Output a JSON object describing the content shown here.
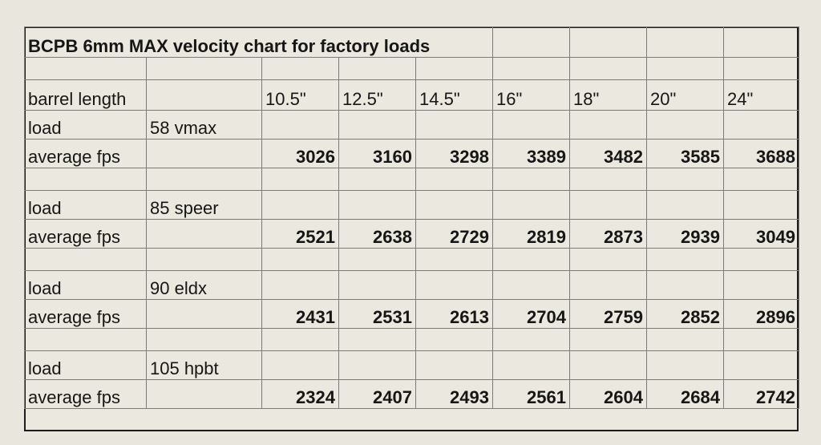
{
  "title": "BCPB 6mm MAX velocity chart for factory loads",
  "header": {
    "label": "barrel length",
    "columns": [
      "10.5\"",
      "12.5\"",
      "14.5\"",
      "16\"",
      "18\"",
      "20\"",
      "24\""
    ]
  },
  "loads": [
    {
      "load_label": "load",
      "load_name": "58 vmax",
      "fps_label": "average fps",
      "fps": [
        "3026",
        "3160",
        "3298",
        "3389",
        "3482",
        "3585",
        "3688"
      ]
    },
    {
      "load_label": "load",
      "load_name": "85 speer",
      "fps_label": "average fps",
      "fps": [
        "2521",
        "2638",
        "2729",
        "2819",
        "2873",
        "2939",
        "3049"
      ]
    },
    {
      "load_label": "load",
      "load_name": "90 eldx",
      "fps_label": "average fps",
      "fps": [
        "2431",
        "2531",
        "2613",
        "2704",
        "2759",
        "2852",
        "2896"
      ]
    },
    {
      "load_label": "load",
      "load_name": "105 hpbt",
      "fps_label": "average fps",
      "fps": [
        "2324",
        "2407",
        "2493",
        "2561",
        "2604",
        "2684",
        "2742"
      ]
    }
  ]
}
